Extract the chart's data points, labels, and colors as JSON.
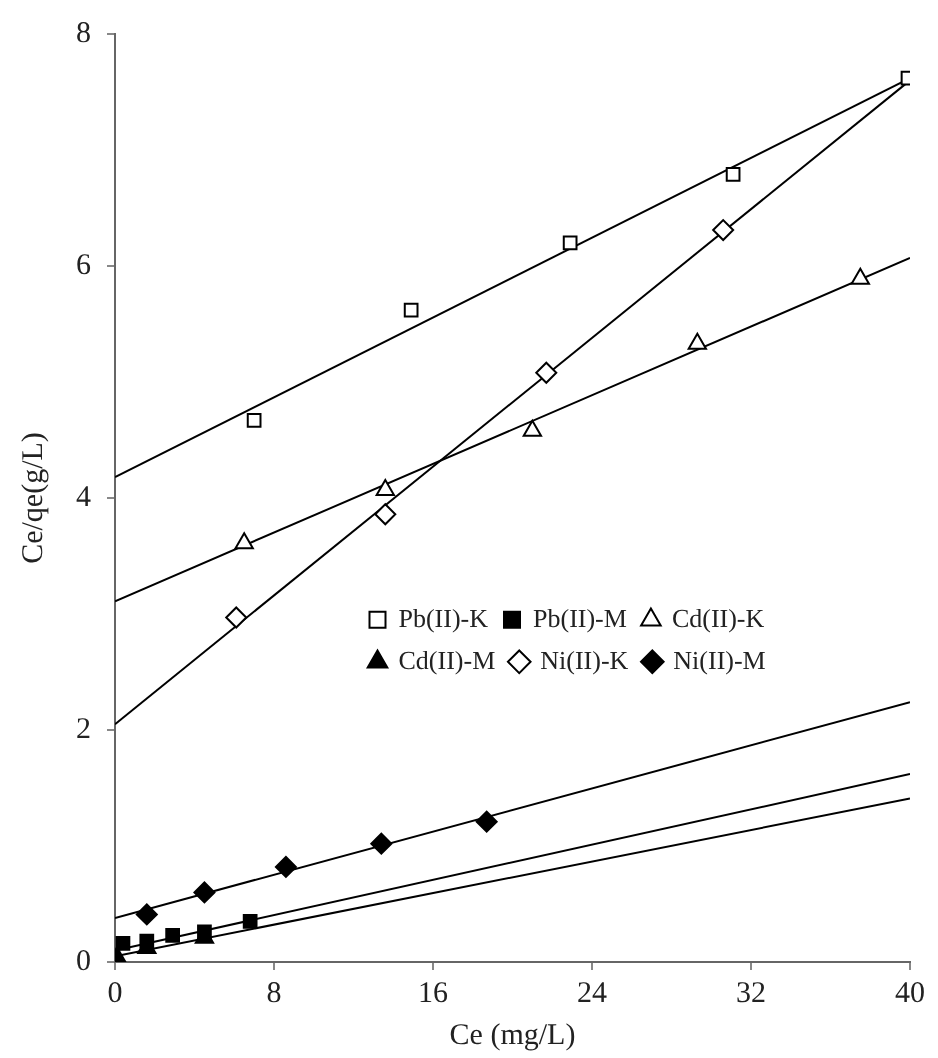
{
  "chart_data": {
    "type": "scatter",
    "xlabel": "Ce (mg/L)",
    "ylabel": "Ce/qe(g/L)",
    "xlim": [
      0,
      40
    ],
    "xticks": [
      0,
      8,
      16,
      24,
      32,
      40
    ],
    "ylim": [
      0,
      8
    ],
    "yticks": [
      0,
      2,
      4,
      6,
      8
    ],
    "grid": false,
    "legend": "right",
    "series": [
      {
        "name": "Pb(II)-K",
        "color": "#ffffff",
        "marker": "square",
        "x": [
          7.0,
          14.9,
          22.9,
          31.1,
          39.9
        ],
        "values": [
          4.67,
          5.62,
          6.2,
          6.79,
          7.62
        ]
      },
      {
        "name": "Pb(II)-M",
        "color": "#000000",
        "marker": "square",
        "x": [
          0.4,
          1.6,
          2.9,
          4.5,
          6.8
        ],
        "values": [
          0.16,
          0.18,
          0.23,
          0.26,
          0.35
        ]
      },
      {
        "name": "Cd(II)-K",
        "color": "#ffffff",
        "marker": "triangle",
        "x": [
          6.5,
          13.6,
          21.0,
          29.3,
          37.5
        ],
        "values": [
          3.61,
          4.07,
          4.58,
          5.33,
          5.89
        ]
      },
      {
        "name": "Cd(II)-M",
        "color": "#000000",
        "marker": "triangle",
        "x": [
          0.1,
          1.6,
          2.9,
          4.5
        ],
        "values": [
          0.04,
          0.12,
          null,
          0.21
        ]
      },
      {
        "name": "Ni(II)-K",
        "color": "#ffffff",
        "marker": "diamond",
        "x": [
          6.1,
          13.6,
          21.7,
          30.6
        ],
        "values": [
          2.97,
          3.86,
          5.08,
          6.31
        ]
      },
      {
        "name": "Ni(II)-M",
        "color": "#000000",
        "marker": "diamond",
        "x": [
          1.6,
          4.5,
          8.6,
          13.4,
          18.7
        ],
        "values": [
          0.41,
          0.6,
          0.82,
          1.02,
          1.21
        ]
      },
      {
        "type": "line",
        "color": "#000000",
        "marker": "none",
        "x": [
          0,
          40
        ],
        "values": [
          4.18,
          7.62
        ]
      },
      {
        "type": "line",
        "color": "#000000",
        "marker": "none",
        "x": [
          0,
          40
        ],
        "values": [
          0.1,
          1.62
        ]
      },
      {
        "type": "line",
        "color": "#000000",
        "marker": "none",
        "x": [
          0,
          40
        ],
        "values": [
          3.11,
          6.07
        ]
      },
      {
        "type": "line",
        "color": "#000000",
        "marker": "none",
        "x": [
          0,
          40
        ],
        "values": [
          0.05,
          1.41
        ]
      },
      {
        "type": "line",
        "color": "#000000",
        "marker": "none",
        "x": [
          0,
          40
        ],
        "values": [
          2.05,
          7.6
        ]
      },
      {
        "type": "line",
        "color": "#000000",
        "marker": "none",
        "x": [
          0,
          40
        ],
        "values": [
          0.38,
          2.24
        ]
      }
    ]
  }
}
